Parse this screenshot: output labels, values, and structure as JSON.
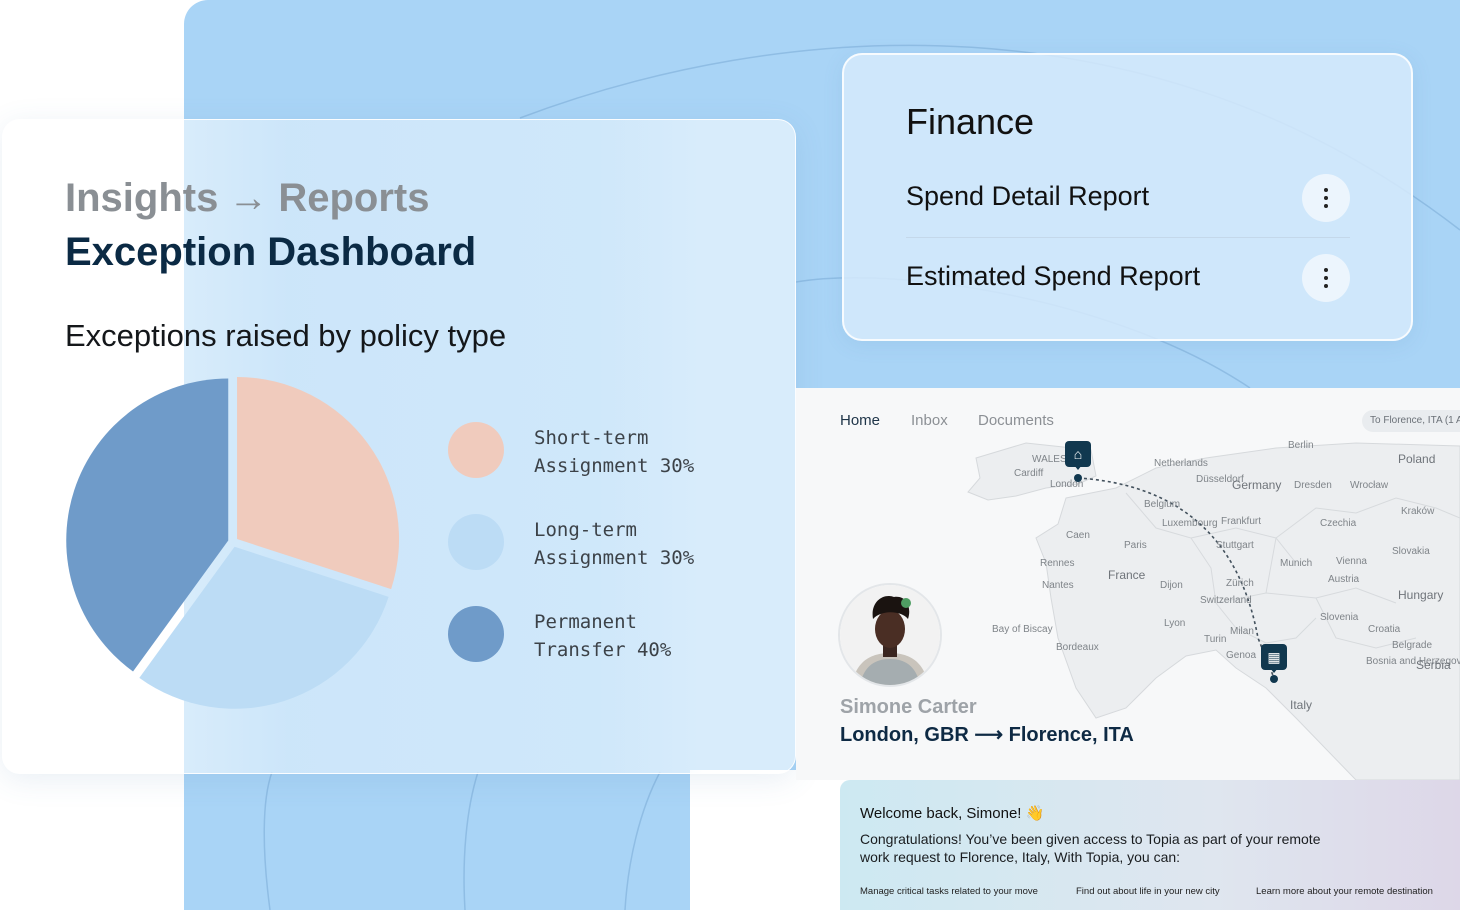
{
  "insights": {
    "breadcrumb": [
      "Insights",
      "Reports"
    ],
    "breadcrumb_separator": "→",
    "title": "Exception Dashboard",
    "chart_title": "Exceptions raised by policy type"
  },
  "chart_data": {
    "type": "pie",
    "title": "Exceptions raised by policy type",
    "slices": [
      {
        "label": "Short-term Assignment",
        "value": 30,
        "color": "#f0cbbd"
      },
      {
        "label": "Long-term Assignment",
        "value": 30,
        "color": "#bcdcf5"
      },
      {
        "label": "Permanent Transfer",
        "value": 40,
        "color": "#6f9bc9"
      }
    ],
    "legend": {
      "placement": "right",
      "items": [
        {
          "line1": "Short-term",
          "line2": "Assignment 30%",
          "color": "#f0cbbd"
        },
        {
          "line1": "Long-term",
          "line2": "Assignment 30%",
          "color": "#bcdcf5"
        },
        {
          "line1": "Permanent",
          "line2": "Transfer 40%",
          "color": "#6f9bc9"
        }
      ]
    }
  },
  "finance": {
    "title": "Finance",
    "reports": [
      {
        "label": "Spend Detail Report"
      },
      {
        "label": "Estimated Spend Report"
      }
    ]
  },
  "map_app": {
    "nav": [
      "Home",
      "Inbox",
      "Documents"
    ],
    "route_chip": "To Florence, ITA (1 A",
    "traveler_name": "Simone Carter",
    "route": "London, GBR ⟶ Florence, ITA",
    "labels": {
      "netherlands": "Netherlands",
      "germany": "Germany",
      "poland": "Poland",
      "belgium": "Belgium",
      "luxembourg": "Luxembourg",
      "frankfurt": "Frankfurt",
      "czechia": "Czechia",
      "france": "France",
      "paris": "Paris",
      "munich": "Munich",
      "vienna": "Vienna",
      "austria": "Austria",
      "slovakia": "Slovakia",
      "hungary": "Hungary",
      "switzerland": "Switzerland",
      "slovenia": "Slovenia",
      "croatia": "Croatia",
      "milan": "Milan",
      "turin": "Turin",
      "genoa": "Genoa",
      "lyon": "Lyon",
      "nantes": "Nantes",
      "rennes": "Rennes",
      "bordeaux": "Bordeaux",
      "bay_of_biscay": "Bay of Biscay",
      "serbia": "Serbia",
      "italy": "Italy",
      "london": "London",
      "cardiff": "Cardiff",
      "wales": "WALES",
      "dusseldorf": "Düsseldorf",
      "dresden": "Dresden",
      "wroclaw": "Wrocław",
      "krakow": "Kraków",
      "stuttgart": "Stuttgart",
      "zurich": "Zürich",
      "dijon": "Dijon",
      "caen": "Caen",
      "belgrade": "Belgrade",
      "bosnia": "Bosnia and Herzegovina",
      "berlin": "Berlin"
    }
  },
  "welcome": {
    "title": "Welcome back, Simone! 👋",
    "body": "Congratulations! You’ve been given access to Topia as part of your remote work request to Florence, Italy, With Topia, you can:",
    "actions": [
      "Manage critical tasks related to your move",
      "Find out about life in your new city",
      "Learn more about your remote destination"
    ]
  }
}
